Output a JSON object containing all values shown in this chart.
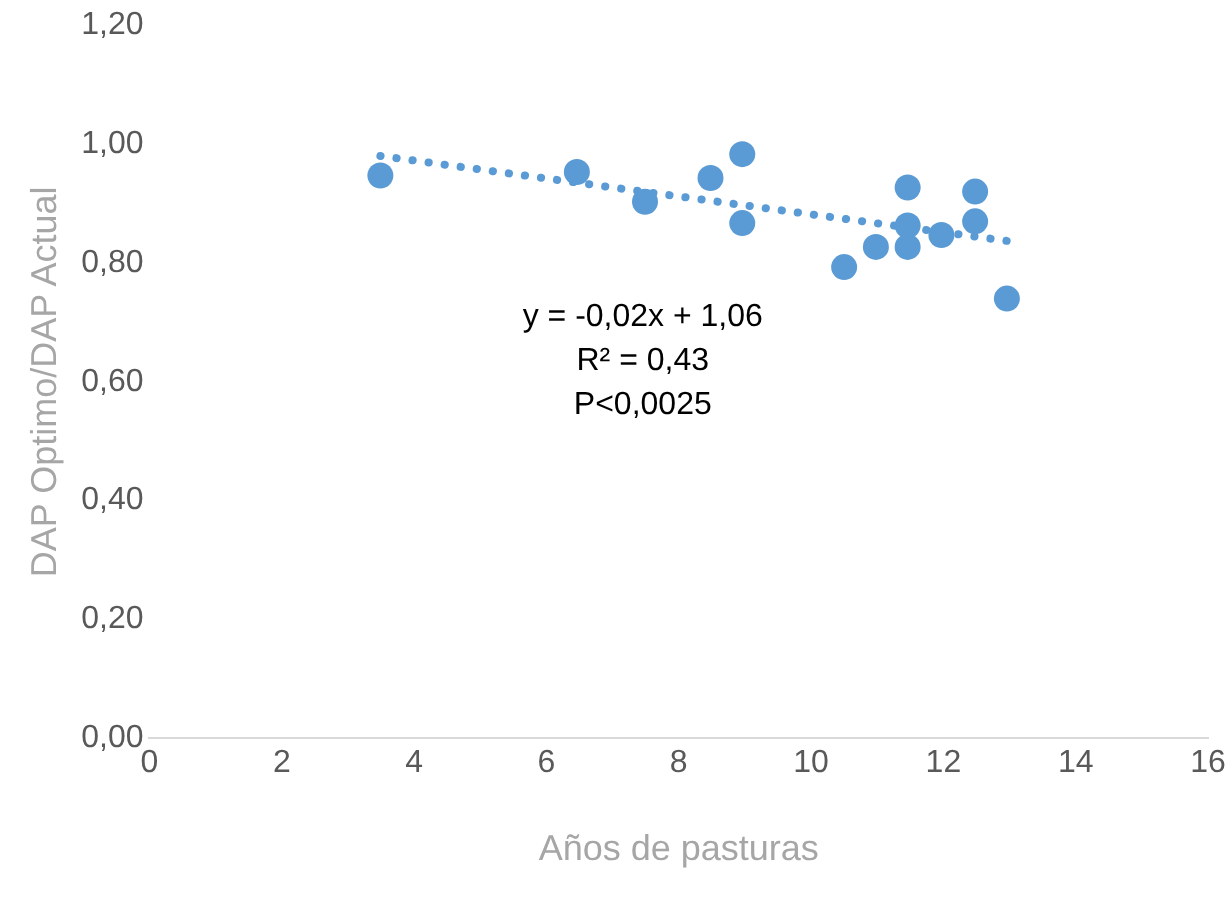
{
  "chart_data": {
    "type": "scatter",
    "xlabel": "Años de pasturas",
    "ylabel": "DAP Optimo/DAP Actual",
    "series": [
      {
        "type": "scatter",
        "color": "#5b9bd5",
        "marker": "circle",
        "x": [
          3.49,
          6.46,
          7.49,
          8.48,
          8.96,
          8.96,
          10.5,
          10.98,
          11.46,
          11.46,
          11.46,
          11.97,
          12.48,
          12.48,
          12.96
        ],
        "values": [
          0.947,
          0.953,
          0.903,
          0.943,
          0.983,
          0.867,
          0.793,
          0.827,
          0.927,
          0.863,
          0.827,
          0.847,
          0.92,
          0.87,
          0.74
        ]
      },
      {
        "type": "line",
        "color": "#5b9bd5",
        "marker": "none",
        "line_style": "dotted",
        "x": [
          3.49,
          13.1
        ],
        "values": [
          0.98,
          0.835
        ]
      }
    ],
    "xlim": [
      0,
      16
    ],
    "xticks": [
      0,
      2,
      4,
      6,
      8,
      10,
      12,
      14,
      16
    ],
    "ylim": [
      0,
      1.2
    ],
    "yticks": [
      {
        "value": 0,
        "label": "0,00"
      },
      {
        "value": 0.2,
        "label": "0,20"
      },
      {
        "value": 0.4,
        "label": "0,40"
      },
      {
        "value": 0.6,
        "label": "0,60"
      },
      {
        "value": 0.8,
        "label": "0,80"
      },
      {
        "value": 1,
        "label": "1,00"
      },
      {
        "value": 1.2,
        "label": "1,20"
      }
    ],
    "annotations": [
      "y = -0,02x + 1,06",
      "R² = 0,43",
      "P<0,0025"
    ],
    "grid": false,
    "legend": false
  }
}
